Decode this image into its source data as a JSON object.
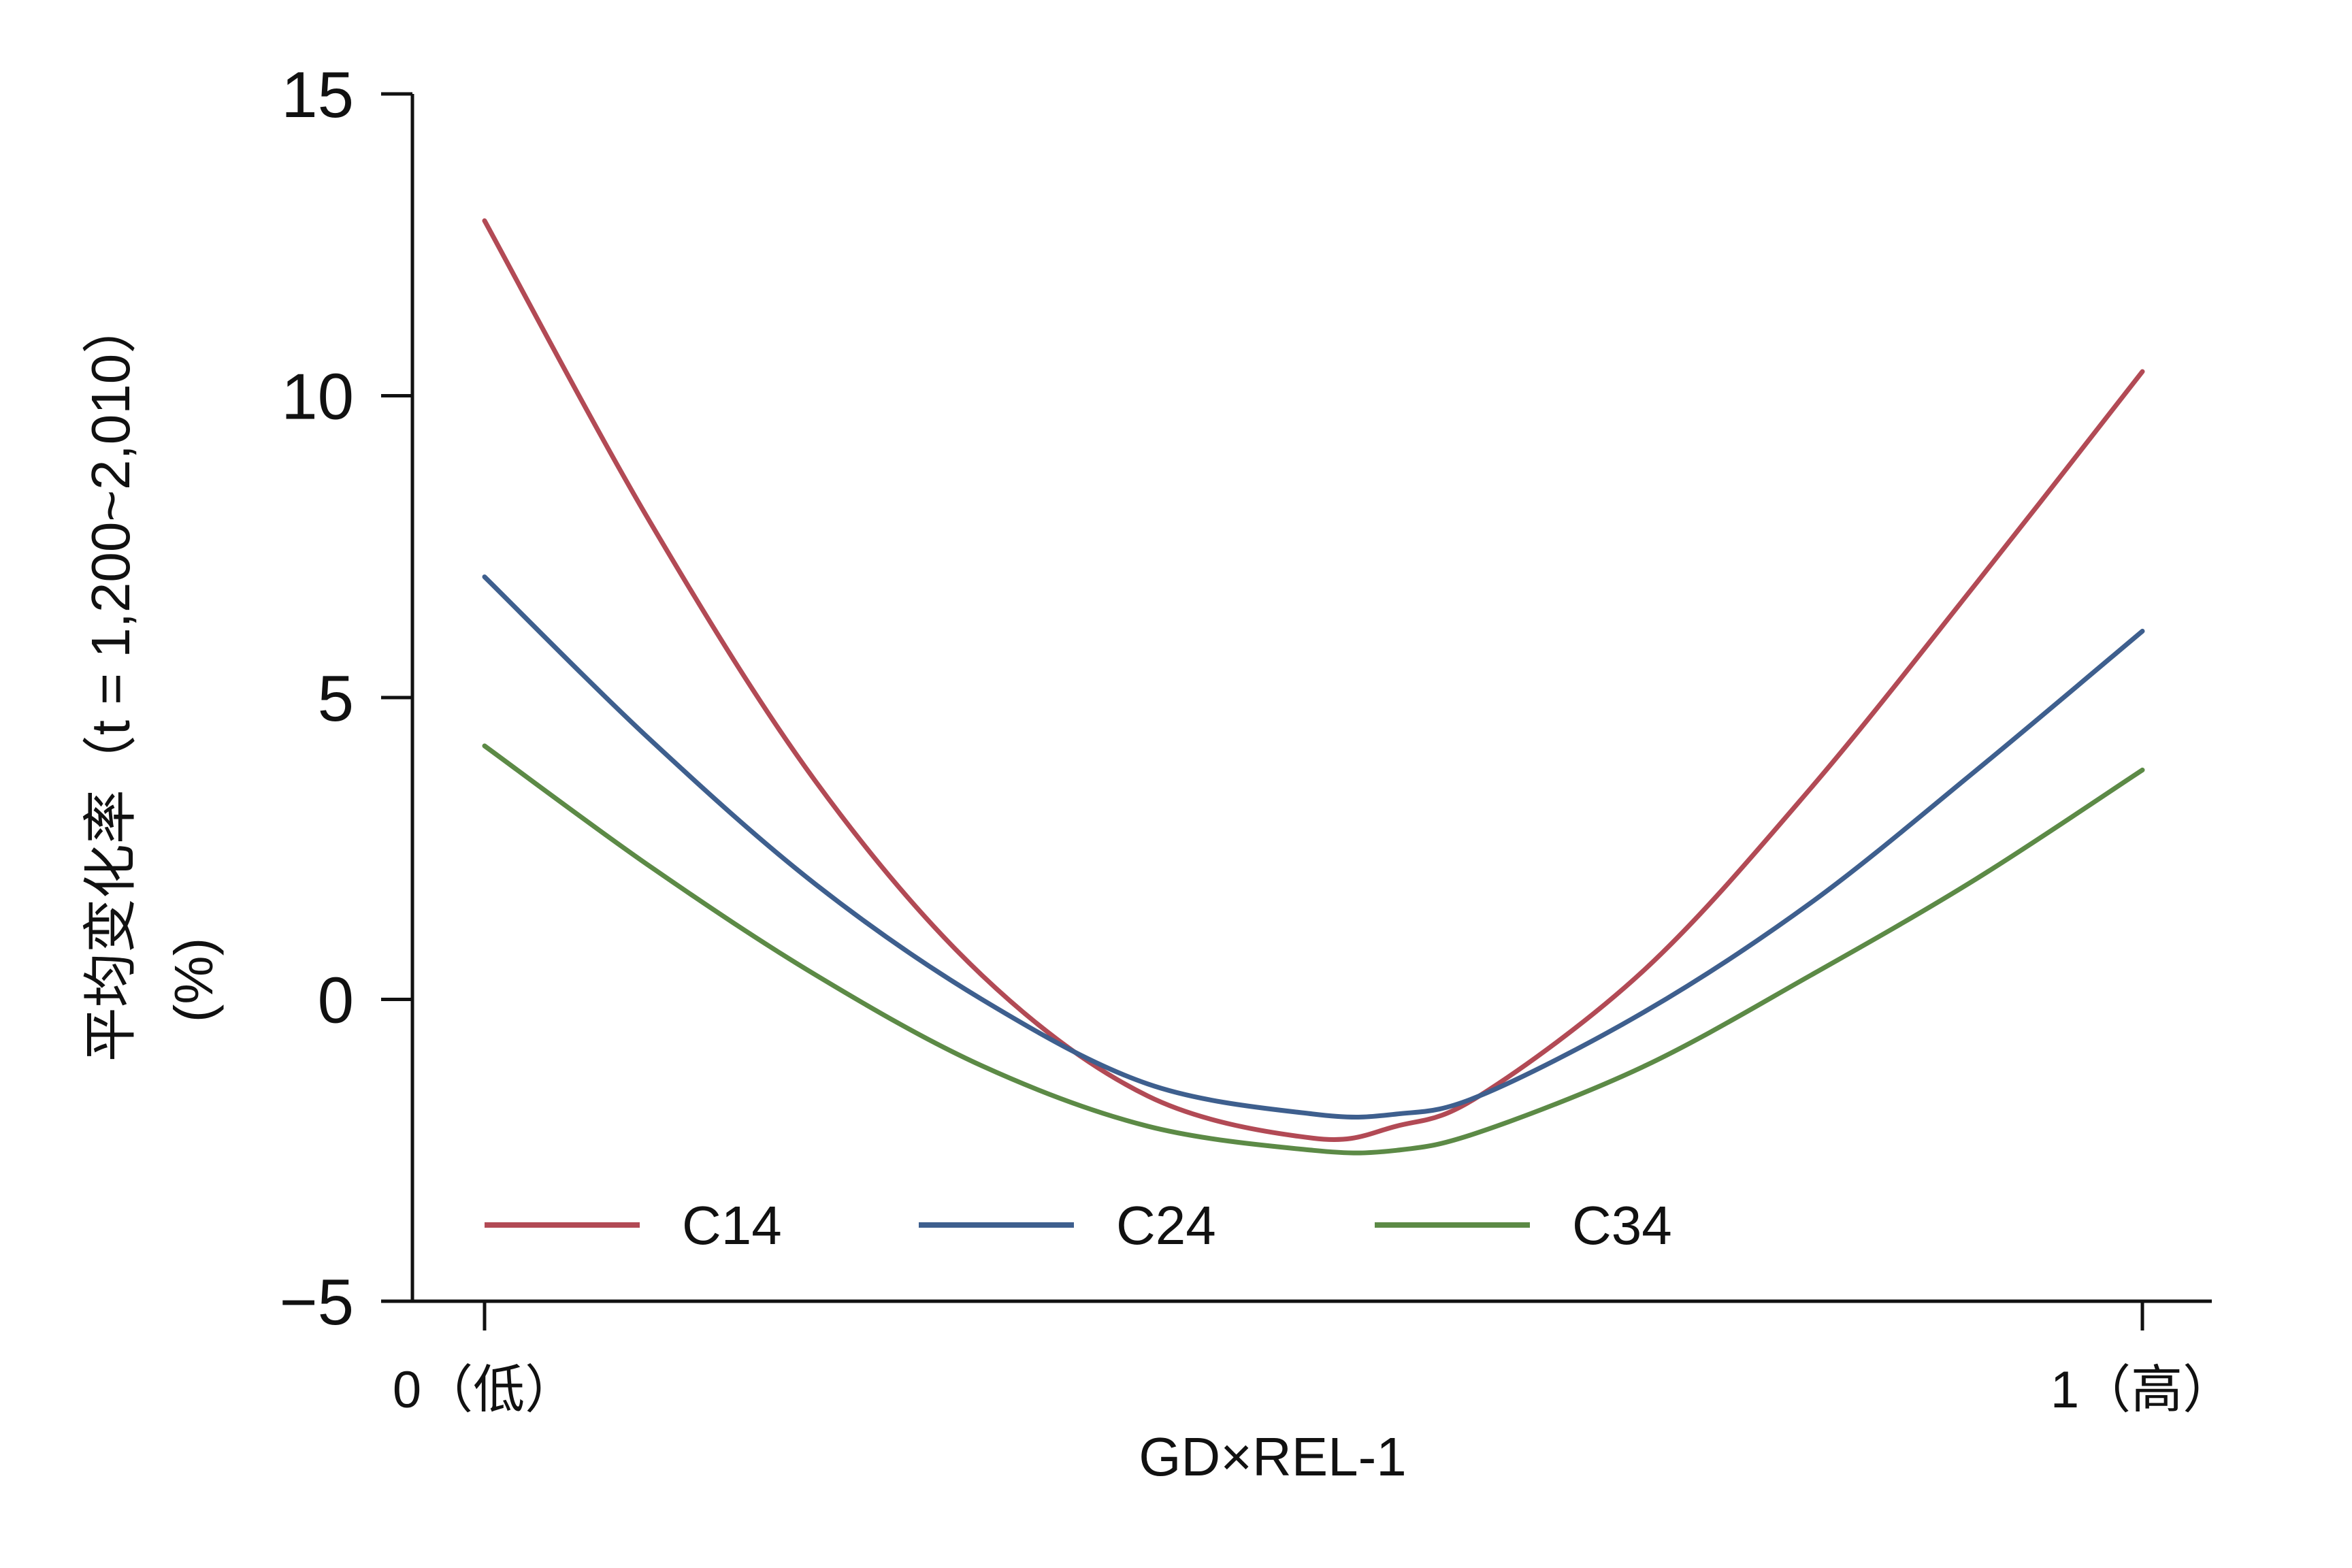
{
  "chart_data": {
    "type": "line",
    "title": "",
    "xlabel": "GD×REL-1",
    "ylabel": {
      "line1": "平均变化率（t = 1,200~2,010）",
      "line2": "(%)"
    },
    "xlim": [
      0,
      1
    ],
    "ylim": [
      -5,
      15
    ],
    "yticks": [
      15,
      10,
      5,
      0,
      -5
    ],
    "ytick_labels": [
      "15",
      "10",
      "5",
      "0",
      "−5"
    ],
    "xticks": [
      0,
      1
    ],
    "xtick_labels": [
      "0（低）",
      "1（高）"
    ],
    "grid": false,
    "legend_position": "bottom, single row inside plot",
    "x": [
      0,
      0.1,
      0.2,
      0.3,
      0.4,
      0.5,
      0.55,
      0.6,
      0.7,
      0.8,
      0.9,
      1.0
    ],
    "series": [
      {
        "name": "C14",
        "color": "#b24a55",
        "values": [
          12.9,
          7.9,
          3.6,
          0.4,
          -1.6,
          -2.3,
          -2.1,
          -1.6,
          0.5,
          3.5,
          6.9,
          10.4
        ]
      },
      {
        "name": "C24",
        "color": "#3e5f8e",
        "values": [
          7.0,
          4.3,
          1.9,
          0.0,
          -1.4,
          -1.9,
          -1.9,
          -1.6,
          -0.2,
          1.6,
          3.8,
          6.1
        ]
      },
      {
        "name": "C34",
        "color": "#5c8a46",
        "values": [
          4.2,
          2.2,
          0.4,
          -1.1,
          -2.1,
          -2.5,
          -2.5,
          -2.2,
          -1.1,
          0.4,
          2.0,
          3.8
        ]
      }
    ]
  }
}
